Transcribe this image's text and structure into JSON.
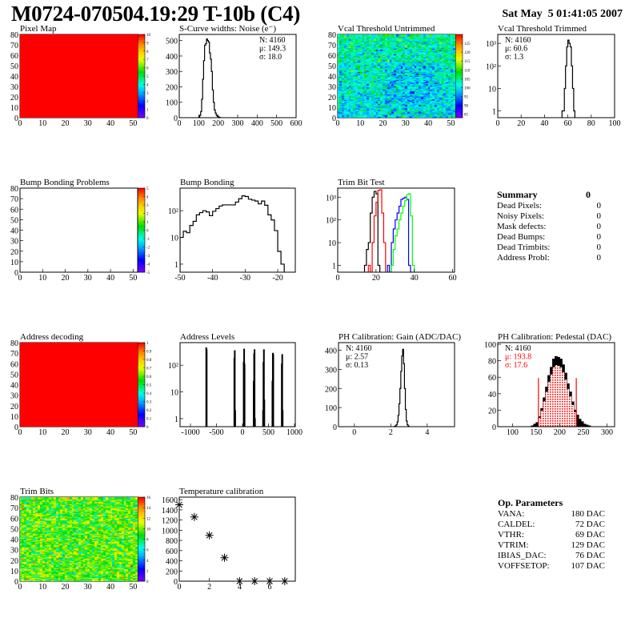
{
  "header": {
    "title": "M0724-070504.19:29 T-10b (C4)",
    "date": "Sat May  5 01:41:05 2007"
  },
  "summary": {
    "title": "Summary",
    "total": "0",
    "rows": [
      {
        "label": "Dead Pixels:",
        "value": "0"
      },
      {
        "label": "Noisy Pixels:",
        "value": "0"
      },
      {
        "label": "Mask defects:",
        "value": "0"
      },
      {
        "label": "Dead Bumps:",
        "value": "0"
      },
      {
        "label": "Dead Trimbits:",
        "value": "0"
      },
      {
        "label": "Address Probl:",
        "value": "0"
      }
    ]
  },
  "op_parameters": {
    "title": "Op. Parameters",
    "rows": [
      {
        "label": "VANA:",
        "value": "180 DAC"
      },
      {
        "label": "CALDEL:",
        "value": "72 DAC"
      },
      {
        "label": "VTHR:",
        "value": "69 DAC"
      },
      {
        "label": "VTRIM:",
        "value": "129 DAC"
      },
      {
        "label": "IBIAS_DAC:",
        "value": "76 DAC"
      },
      {
        "label": "VOFFSETOP:",
        "value": "107 DAC"
      }
    ]
  },
  "chart_data": [
    {
      "type": "heatmap",
      "title": "Pixel Map",
      "xlim": [
        0,
        52
      ],
      "ylim": [
        0,
        80
      ],
      "zlim": [
        0,
        10
      ],
      "z_mean": 10,
      "z_spread": 0,
      "xticks": [
        0,
        10,
        20,
        30,
        40,
        50
      ],
      "xtick_labels": [
        "0",
        "10",
        "20",
        "30",
        "40",
        "50"
      ],
      "yticks": [
        0,
        10,
        20,
        30,
        40,
        50,
        60,
        70,
        80
      ],
      "ytick_labels": [
        "0",
        "10",
        "20",
        "30",
        "40",
        "50",
        "60",
        "70",
        "80"
      ],
      "zticks": [
        0,
        1,
        2,
        3,
        4,
        5,
        6,
        7,
        8,
        9,
        10
      ],
      "ztick_labels": [
        "0",
        "1",
        "2",
        "3",
        "4",
        "5",
        "6",
        "7",
        "8",
        "9",
        "10"
      ]
    },
    {
      "type": "bar",
      "title": "S-Curve widths: Noise (e⁻)",
      "xlim": [
        0,
        600
      ],
      "ylim": [
        0,
        540
      ],
      "log": false,
      "x_start": 100,
      "bin_width": 5,
      "values": [
        5,
        15,
        40,
        120,
        250,
        370,
        470,
        480,
        510,
        500,
        490,
        420,
        380,
        300,
        180,
        100,
        50,
        30,
        15,
        8,
        5,
        2
      ],
      "xticks": [
        0,
        100,
        200,
        300,
        400,
        500,
        600
      ],
      "xtick_labels": [
        "0",
        "100",
        "200",
        "300",
        "400",
        "500",
        "600"
      ],
      "yticks": [
        0,
        100,
        200,
        300,
        400,
        500
      ],
      "ytick_labels": [
        "0",
        "100",
        "200",
        "300",
        "400",
        "500"
      ],
      "stats": [
        {
          "text": "N: 4160"
        },
        {
          "text": "μ: 149.3"
        },
        {
          "text": "σ: 18.0"
        }
      ],
      "stats_position": "top-right"
    },
    {
      "type": "heatmap",
      "title": "Vcal Threshold Untrimmed",
      "xlim": [
        0,
        52
      ],
      "ylim": [
        0,
        80
      ],
      "zlim": [
        83,
        130
      ],
      "z_mean": 100,
      "z_spread": 4,
      "xticks": [
        0,
        10,
        20,
        30,
        40,
        50
      ],
      "xtick_labels": [
        "0",
        "10",
        "20",
        "30",
        "40",
        "50"
      ],
      "yticks": [
        0,
        10,
        20,
        30,
        40,
        50,
        60,
        70,
        80
      ],
      "ytick_labels": [
        "0",
        "10",
        "20",
        "30",
        "40",
        "50",
        "60",
        "70",
        "80"
      ],
      "zticks": [
        85,
        90,
        95,
        100,
        105,
        110,
        115,
        120,
        125
      ],
      "ztick_labels": [
        "85",
        "90",
        "95",
        "100",
        "105",
        "110",
        "115",
        "120",
        "125"
      ]
    },
    {
      "type": "bar",
      "title": "Vcal Threshold Trimmed",
      "xlim": [
        0,
        100
      ],
      "ylim": [
        0.5,
        2500
      ],
      "log": true,
      "x_start": 55,
      "bin_width": 1,
      "values": [
        1,
        1,
        10,
        100,
        700,
        1400,
        1000,
        700,
        100,
        10,
        1
      ],
      "xticks": [
        0,
        20,
        40,
        60,
        80,
        100
      ],
      "xtick_labels": [
        "0",
        "20",
        "40",
        "60",
        "80",
        "100"
      ],
      "yticks": [
        1,
        10,
        100,
        1000
      ],
      "ytick_labels": [
        "1",
        "10",
        "10²",
        "10³"
      ],
      "stats": [
        {
          "text": "N: 4160"
        },
        {
          "text": "μ: 60.6"
        },
        {
          "text": "σ:  1.3"
        }
      ],
      "stats_position": "top-left"
    },
    {
      "type": "heatmap",
      "title": "Bump Bonding Problems",
      "xlim": [
        0,
        52
      ],
      "ylim": [
        0,
        80
      ],
      "zlim": [
        -5,
        5
      ],
      "z_mean": null,
      "z_spread": 0,
      "xticks": [
        0,
        10,
        20,
        30,
        40,
        50
      ],
      "xtick_labels": [
        "0",
        "10",
        "20",
        "30",
        "40",
        "50"
      ],
      "yticks": [
        0,
        10,
        20,
        30,
        40,
        50,
        60,
        70,
        80
      ],
      "ytick_labels": [
        "0",
        "10",
        "20",
        "30",
        "40",
        "50",
        "60",
        "70",
        "80"
      ],
      "zticks": [
        -5,
        -4,
        -3,
        -2,
        -1,
        0,
        1,
        2,
        3,
        4,
        5
      ],
      "ztick_labels": [
        "-5",
        "-4",
        "-3",
        "-2",
        "-1",
        "0",
        "1",
        "2",
        "3",
        "4",
        "5"
      ]
    },
    {
      "type": "bar",
      "title": "Bump Bonding",
      "xlim": [
        -50,
        -14.6
      ],
      "ylim": [
        0.5,
        700
      ],
      "log": true,
      "x_start": -50,
      "bin_width": 1,
      "values": [
        10,
        17,
        15,
        28,
        40,
        70,
        85,
        100,
        90,
        65,
        95,
        120,
        150,
        165,
        165,
        165,
        165,
        210,
        280,
        360,
        340,
        270,
        250,
        230,
        180,
        230,
        160,
        70,
        45,
        18,
        3,
        1
      ],
      "xticks": [
        -50,
        -40,
        -30,
        -20
      ],
      "xtick_labels": [
        "-50",
        "-40",
        "-30",
        "-20"
      ],
      "yticks": [
        1,
        10,
        100
      ],
      "ytick_labels": [
        "1",
        "10",
        "10²"
      ]
    },
    {
      "type": "bar",
      "title": "Trim Bit Test",
      "xlim": [
        0,
        61
      ],
      "ylim": [
        0.5,
        2500
      ],
      "log": true,
      "series": [
        {
          "color": "#000000",
          "x_start": 14,
          "bin_width": 1,
          "values": [
            1,
            5,
            10,
            200,
            1000,
            1800,
            1400,
            1
          ]
        },
        {
          "color": "#ff0000",
          "x_start": 15,
          "bin_width": 1,
          "values": [
            0.5,
            1,
            0.5,
            10,
            150,
            600,
            2000,
            2100,
            200,
            10
          ]
        },
        {
          "color": "#0000ff",
          "x_start": 26,
          "bin_width": 1,
          "values": [
            1,
            0.5,
            10,
            40,
            100,
            200,
            400,
            800,
            900,
            1000,
            800,
            1,
            0.5
          ]
        },
        {
          "color": "#00ff00",
          "x_start": 28,
          "bin_width": 1,
          "values": [
            1,
            5,
            20,
            40,
            100,
            200,
            400,
            700,
            1300,
            1400,
            150,
            1
          ]
        }
      ],
      "xticks": [
        0,
        20,
        40,
        60
      ],
      "xtick_labels": [
        "0",
        "20",
        "40",
        "60"
      ],
      "yticks": [
        1,
        10,
        100,
        1000
      ],
      "ytick_labels": [
        "1",
        "10",
        "10²",
        "10³"
      ]
    },
    {
      "type": "heatmap",
      "title": "Address decoding",
      "xlim": [
        0,
        52
      ],
      "ylim": [
        0,
        80
      ],
      "zlim": [
        0,
        1
      ],
      "z_mean": 1,
      "z_spread": 0,
      "xticks": [
        0,
        10,
        20,
        30,
        40,
        50
      ],
      "xtick_labels": [
        "0",
        "10",
        "20",
        "30",
        "40",
        "50"
      ],
      "yticks": [
        0,
        10,
        20,
        30,
        40,
        50,
        60,
        70,
        80
      ],
      "ytick_labels": [
        "0",
        "10",
        "20",
        "30",
        "40",
        "50",
        "60",
        "70",
        "80"
      ],
      "zticks": [
        0,
        0.1,
        0.2,
        0.3,
        0.4,
        0.5,
        0.6,
        0.7,
        0.8,
        0.9,
        1
      ],
      "ztick_labels": [
        "0",
        "0.1",
        "0.2",
        "0.3",
        "0.4",
        "0.5",
        "0.6",
        "0.7",
        "0.8",
        "0.9",
        "1"
      ]
    },
    {
      "type": "bar",
      "title": "Address Levels",
      "xlim": [
        -1200,
        1015
      ],
      "ylim": [
        0.5,
        700
      ],
      "log": true,
      "bin_width": 8,
      "points": [
        [
          -700,
          450
        ],
        [
          -692,
          380
        ],
        [
          -160,
          180
        ],
        [
          -152,
          350
        ],
        [
          -144,
          2
        ],
        [
          20,
          130
        ],
        [
          28,
          400
        ],
        [
          36,
          110
        ],
        [
          212,
          25
        ],
        [
          220,
          270
        ],
        [
          228,
          380
        ],
        [
          236,
          1
        ],
        [
          392,
          2
        ],
        [
          400,
          130
        ],
        [
          408,
          380
        ],
        [
          416,
          5
        ],
        [
          572,
          25
        ],
        [
          580,
          280
        ],
        [
          588,
          250
        ],
        [
          752,
          110
        ],
        [
          760,
          250
        ],
        [
          768,
          2
        ]
      ],
      "xticks": [
        -1000,
        -500,
        0,
        500,
        1000
      ],
      "xtick_labels": [
        "-1000",
        "-500",
        "0",
        "500",
        "1000"
      ],
      "yticks": [
        1,
        10,
        100
      ],
      "ytick_labels": [
        "1",
        "10",
        "10²"
      ]
    },
    {
      "type": "bar",
      "title": "PH Calibration: Gain (ADC/DAC)",
      "xlim": [
        -0.87,
        5.5
      ],
      "ylim": [
        0,
        440
      ],
      "log": false,
      "x_start": 2.2,
      "bin_width": 0.05,
      "values": [
        2,
        5,
        10,
        25,
        60,
        120,
        200,
        290,
        370,
        405,
        330,
        200,
        90,
        30,
        10,
        3
      ],
      "xticks": [
        0,
        2,
        4
      ],
      "xtick_labels": [
        "0",
        "2",
        "4"
      ],
      "yticks": [
        0,
        100,
        200,
        300,
        400
      ],
      "ytick_labels": [
        "0",
        "100",
        "200",
        "300",
        "400"
      ],
      "stats": [
        {
          "text": "N: 4160"
        },
        {
          "text": "μ: 2.57"
        },
        {
          "text": "σ: 0.13"
        }
      ],
      "stats_position": "top-left"
    },
    {
      "type": "bar",
      "title": "PH Calibration: Pedestal (DAC)",
      "xlim": [
        69,
        316
      ],
      "ylim": [
        0,
        102
      ],
      "log": false,
      "x_start": 140,
      "bin_width": 5,
      "values": [
        1,
        3,
        5,
        12,
        22,
        35,
        48,
        62,
        72,
        82,
        85,
        84,
        82,
        75,
        65,
        52,
        42,
        30,
        20,
        14,
        9,
        6,
        3,
        2,
        1
      ],
      "fit_range": [
        155,
        235
      ],
      "fit_color": "#ff0000",
      "xticks": [
        100,
        150,
        200,
        250,
        300
      ],
      "xtick_labels": [
        "100",
        "150",
        "200",
        "250",
        "300"
      ],
      "yticks": [
        0,
        20,
        40,
        60,
        80,
        100
      ],
      "ytick_labels": [
        "0",
        "20",
        "40",
        "60",
        "80",
        "100"
      ],
      "stats": [
        {
          "text": "N: 4160"
        },
        {
          "text": "μ: 193.8",
          "color": "#ff0000"
        },
        {
          "text": "σ: 17.6",
          "color": "#ff0000"
        }
      ],
      "stats_position": "top-left"
    },
    {
      "type": "heatmap",
      "title": "Trim Bits",
      "xlim": [
        0,
        52
      ],
      "ylim": [
        0,
        80
      ],
      "zlim": [
        0,
        16
      ],
      "z_mean": 9.5,
      "z_spread": 1.6,
      "xticks": [
        0,
        10,
        20,
        30,
        40,
        50
      ],
      "xtick_labels": [
        "0",
        "10",
        "20",
        "30",
        "40",
        "50"
      ],
      "yticks": [
        0,
        10,
        20,
        30,
        40,
        50,
        60,
        70,
        80
      ],
      "ytick_labels": [
        "0",
        "10",
        "20",
        "30",
        "40",
        "50",
        "60",
        "70",
        "80"
      ],
      "zticks": [
        0,
        2,
        4,
        6,
        8,
        10,
        12,
        14,
        16
      ],
      "ztick_labels": [
        "0",
        "2",
        "4",
        "6",
        "8",
        "10",
        "12",
        "14",
        "16"
      ]
    },
    {
      "type": "scatter",
      "title": "Temperature calibration",
      "xlim": [
        0,
        7.7
      ],
      "ylim": [
        0,
        1650
      ],
      "log": false,
      "marker": "star",
      "x": [
        0,
        1,
        2,
        3,
        4,
        5,
        6,
        7
      ],
      "y": [
        1500,
        1260,
        900,
        460,
        0,
        0,
        0,
        0
      ],
      "xticks": [
        0,
        2,
        4,
        6
      ],
      "xtick_labels": [
        "0",
        "2",
        "4",
        "6"
      ],
      "yticks": [
        0,
        200,
        400,
        600,
        800,
        1000,
        1200,
        1400,
        1600
      ],
      "ytick_labels": [
        "0",
        "200",
        "400",
        "600",
        "800",
        "1000",
        "1200",
        "1400",
        "1600"
      ]
    }
  ]
}
